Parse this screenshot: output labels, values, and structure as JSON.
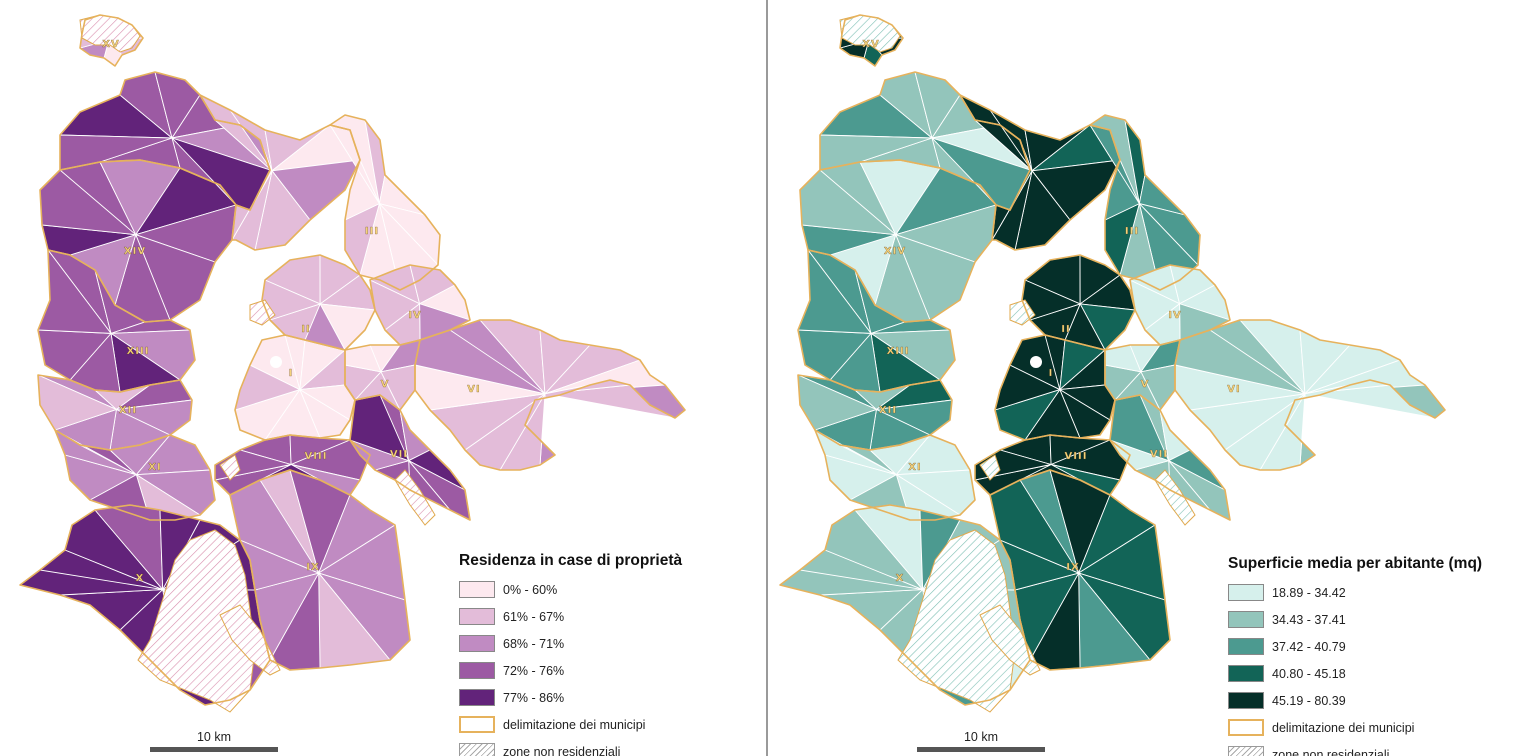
{
  "left_map": {
    "legend": {
      "title": "Residenza in case di proprietà",
      "classes": [
        {
          "label": "0% - 60%",
          "color": "#fde9ef"
        },
        {
          "label": "61% - 67%",
          "color": "#e3bcd9"
        },
        {
          "label": "68% - 71%",
          "color": "#c08bc2"
        },
        {
          "label": "72% - 76%",
          "color": "#9c5aa3"
        },
        {
          "label": "77% - 86%",
          "color": "#62237a"
        }
      ],
      "boundary_label": "delimitazione dei municipi",
      "nonres_label": "zone non residenziali"
    },
    "scale": "10 km",
    "hatch_color": "#d98fae"
  },
  "right_map": {
    "legend": {
      "title": "Superficie media per abitante (mq)",
      "classes": [
        {
          "label": "18.89 - 34.42",
          "color": "#d6f0ec"
        },
        {
          "label": "34.43 - 37.41",
          "color": "#93c5bb"
        },
        {
          "label": "37.42 - 40.79",
          "color": "#4c9a90"
        },
        {
          "label": "40.80 - 45.18",
          "color": "#126457"
        },
        {
          "label": "45.19 - 80.39",
          "color": "#052f29"
        }
      ],
      "boundary_label": "delimitazione dei municipi",
      "nonres_label": "zone non residenziali"
    },
    "scale": "10 km",
    "hatch_color": "#7fc0b4"
  },
  "municipi": [
    "I",
    "II",
    "III",
    "IV",
    "V",
    "VI",
    "VII",
    "VIII",
    "IX",
    "X",
    "XI",
    "XII",
    "XIII",
    "XIV",
    "XV"
  ],
  "municipio_classes": {
    "left": {
      "XV": 1,
      "XIV": 3,
      "XIII": 3,
      "XII": 2,
      "XI": 2,
      "X": 4,
      "IX": 2,
      "VIII": 3,
      "VII": 3,
      "VI": 1,
      "V": 1,
      "IV": 1,
      "III": 0,
      "II": 1,
      "I": 0
    },
    "right": {
      "XV": 4,
      "XIV": 1,
      "XIII": 2,
      "XII": 2,
      "XI": 0,
      "X": 1,
      "IX": 3,
      "VIII": 4,
      "VII": 1,
      "VI": 0,
      "V": 1,
      "IV": 0,
      "III": 2,
      "II": 4,
      "I": 4
    }
  }
}
